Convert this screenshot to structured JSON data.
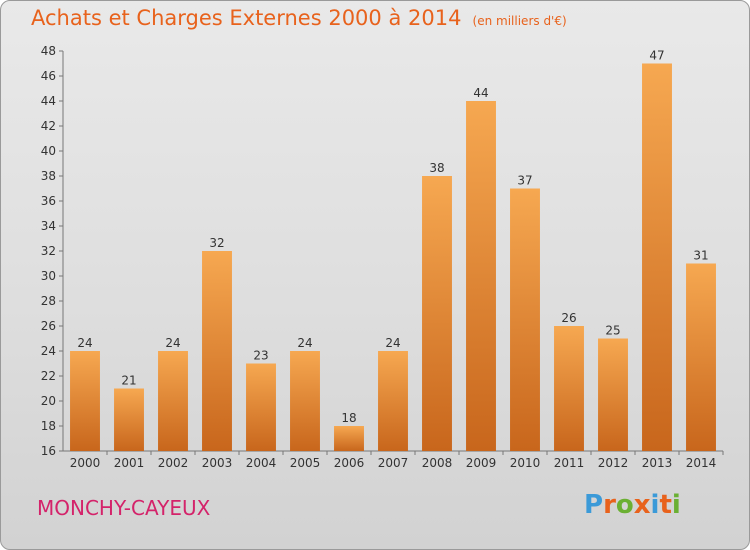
{
  "header": {
    "title": "Achats et Charges Externes 2000 à 2014",
    "unit": "(en milliers d'€)"
  },
  "footer": {
    "town": "MONCHY-CAYEUX",
    "logo": "Proxiti"
  },
  "colors": {
    "title": "#e8621c",
    "town": "#d4236a",
    "bar_top": "#f6a851",
    "bar_bottom": "#c8661c",
    "logo_letters": [
      "#3b9ad8",
      "#e8621c",
      "#6bb033",
      "#e8621c",
      "#3b9ad8",
      "#e8621c",
      "#6bb033"
    ]
  },
  "chart_data": {
    "type": "bar",
    "categories": [
      "2000",
      "2001",
      "2002",
      "2003",
      "2004",
      "2005",
      "2006",
      "2007",
      "2008",
      "2009",
      "2010",
      "2011",
      "2012",
      "2013",
      "2014"
    ],
    "values": [
      24,
      21,
      24,
      32,
      23,
      24,
      18,
      24,
      38,
      44,
      37,
      26,
      25,
      47,
      31
    ],
    "ylim": [
      16,
      48
    ],
    "yticks": [
      16,
      18,
      20,
      22,
      24,
      26,
      28,
      30,
      32,
      34,
      36,
      38,
      40,
      42,
      44,
      46,
      48
    ],
    "grid": false,
    "data_labels": true,
    "title": "Achats et Charges Externes 2000 à 2014",
    "xlabel": "",
    "ylabel": ""
  }
}
